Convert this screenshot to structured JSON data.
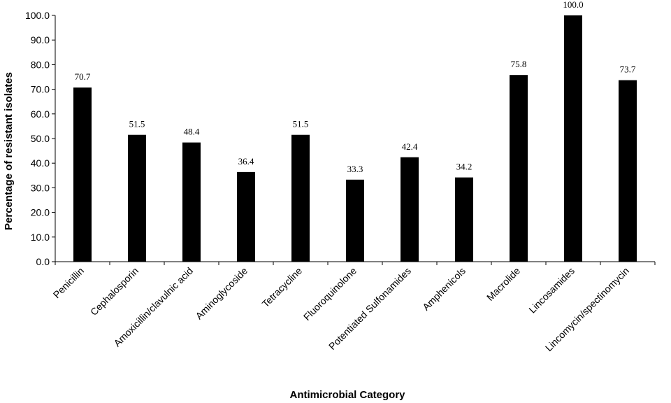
{
  "chart_data": {
    "type": "bar",
    "title": "",
    "xlabel": "Antimicrobial Category",
    "ylabel": "Percentage of resistant isolates",
    "ylim": [
      0,
      100
    ],
    "yticks": [
      "0.0",
      "10.0",
      "20.0",
      "30.0",
      "40.0",
      "50.0",
      "60.0",
      "70.0",
      "80.0",
      "90.0",
      "100.0"
    ],
    "grid": false,
    "bar_color": "#000000",
    "categories": [
      "Penicillin",
      "Cephalosporin",
      "Amoxicillin/clavulnic acid",
      "Aminoglycoside",
      "Tetracycline",
      "Fluoroquinolone",
      "Potentiated Sulfonamides",
      "Amphenicols",
      "Macrolide",
      "Lincosamides",
      "Lincomycin/spectinomycin"
    ],
    "values": [
      70.7,
      51.5,
      48.4,
      36.4,
      51.5,
      33.3,
      42.4,
      34.2,
      75.8,
      100.0,
      73.7
    ],
    "data_labels": [
      "70.7",
      "51.5",
      "48.4",
      "36.4",
      "51.5",
      "33.3",
      "42.4",
      "34.2",
      "75.8",
      "100.0",
      "73.7"
    ]
  }
}
